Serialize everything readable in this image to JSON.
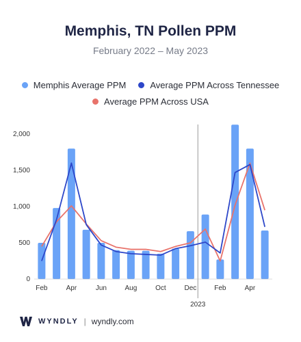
{
  "header": {
    "title": "Memphis, TN Pollen PPM",
    "subtitle": "February 2022 – May 2023"
  },
  "footer": {
    "brand": "WYNDLY",
    "separator": "|",
    "url": "wyndly.com"
  },
  "chart_data": {
    "type": "bar",
    "title": "Memphis, TN Pollen PPM",
    "subtitle": "February 2022 – May 2023",
    "xlabel": "",
    "ylabel": "",
    "ylim": [
      0,
      2100
    ],
    "yticks": [
      0,
      500,
      1000,
      1500,
      2000
    ],
    "ytick_labels": [
      "0",
      "500",
      "1,000",
      "1,500",
      "2,000"
    ],
    "categories": [
      "Feb 2022",
      "Mar 2022",
      "Apr 2022",
      "May 2022",
      "Jun 2022",
      "Jul 2022",
      "Aug 2022",
      "Sep 2022",
      "Oct 2022",
      "Nov 2022",
      "Dec 2022",
      "Jan 2023",
      "Feb 2023",
      "Mar 2023",
      "Apr 2023",
      "May 2023"
    ],
    "xtick_labels": [
      {
        "index": 0,
        "label": "Feb"
      },
      {
        "index": 2,
        "label": "Apr"
      },
      {
        "index": 4,
        "label": "Jun"
      },
      {
        "index": 6,
        "label": "Aug"
      },
      {
        "index": 8,
        "label": "Oct"
      },
      {
        "index": 10,
        "label": "Dec"
      },
      {
        "index": 12,
        "label": "Feb"
      },
      {
        "index": 14,
        "label": "Apr"
      }
    ],
    "year_divider": {
      "after_index": 10,
      "label": "2023"
    },
    "grid": false,
    "legend_position": "top",
    "series": [
      {
        "name": "Memphis Average PPM",
        "kind": "bar",
        "color": "#6aa3f7",
        "values": [
          500,
          980,
          1800,
          680,
          500,
          400,
          390,
          390,
          350,
          420,
          660,
          890,
          270,
          2130,
          1800,
          670
        ]
      },
      {
        "name": "Average PPM Across Tennessee",
        "kind": "line",
        "color": "#2d47c9",
        "values": [
          250,
          820,
          1600,
          750,
          470,
          380,
          350,
          340,
          330,
          420,
          460,
          510,
          360,
          1470,
          1580,
          720
        ]
      },
      {
        "name": "Average PPM Across USA",
        "kind": "line",
        "color": "#e8736b",
        "values": [
          450,
          790,
          1010,
          760,
          530,
          440,
          410,
          410,
          380,
          450,
          500,
          690,
          250,
          1020,
          1600,
          950
        ]
      }
    ]
  }
}
